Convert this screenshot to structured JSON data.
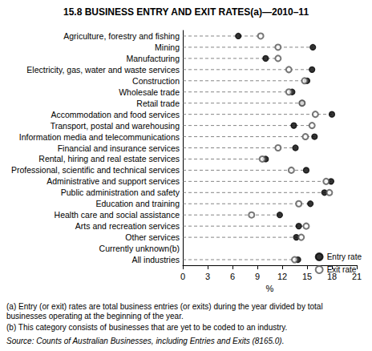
{
  "chart_data": {
    "type": "dot",
    "orientation": "horizontal",
    "title": "15.8 BUSINESS ENTRY AND EXIT RATES(a)—2010–11",
    "categories": [
      "Agriculture, forestry and fishing",
      "Mining",
      "Manufacturing",
      "Electricity, gas, water and waste services",
      "Construction",
      "Wholesale trade",
      "Retail trade",
      "Accommodation and food services",
      "Transport, postal and warehousing",
      "Information media and telecommunications",
      "Financial and insurance services",
      "Rental, hiring and real estate services",
      "Professional, scientific and technical services",
      "Administrative and support services",
      "Public administration and safety",
      "Education and training",
      "Health care and social assistance",
      "Arts and recreation services",
      "Other services",
      "Currently unknown(b)",
      "All industries"
    ],
    "series": [
      {
        "name": "Entry rate",
        "color": "#000000",
        "marker": "circle",
        "values": [
          6.7,
          15.7,
          10.0,
          15.6,
          15.0,
          13.2,
          14.4,
          18.0,
          13.4,
          15.9,
          13.6,
          10.0,
          14.9,
          17.9,
          17.1,
          15.4,
          11.7,
          14.0,
          13.7,
          null,
          13.9
        ]
      },
      {
        "name": "Exit rate",
        "color": "#555555",
        "marker": "emptyCircle",
        "values": [
          9.4,
          11.5,
          11.5,
          12.8,
          14.7,
          12.8,
          14.4,
          16.0,
          15.6,
          14.8,
          11.5,
          9.6,
          13.1,
          17.3,
          17.7,
          14.0,
          8.3,
          14.9,
          14.3,
          null,
          13.5
        ]
      }
    ],
    "x_label": "%",
    "xlim": [
      0,
      21
    ],
    "xticks": [
      0,
      3,
      6,
      9,
      12,
      15,
      18,
      21
    ],
    "line_style": "dashed",
    "legend": "bottom right",
    "notes": [
      "(a) Entry (or exit) rates are total business entries (or exits) during the year divided by total businesses operating at the beginning of the year.",
      "(b) This category consists of businesses that are yet to be coded to an industry."
    ],
    "source": "Source: Counts of Australian Businesses, including Entries and Exits (8165.0)."
  }
}
